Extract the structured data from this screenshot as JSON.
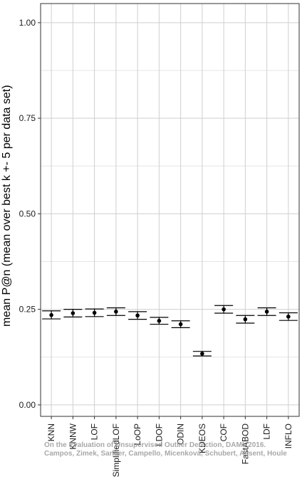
{
  "chart_data": {
    "type": "scatter",
    "subtype": "point-with-error-bars",
    "ylabel": "mean P@n (mean over best k +- 5 per data set)",
    "ylim": [
      -0.03,
      1.05
    ],
    "yticks": [
      0.0,
      0.25,
      0.5,
      0.75,
      1.0
    ],
    "ytick_labels": [
      "0.00",
      "0.25",
      "0.50",
      "0.75",
      "1.00"
    ],
    "grid": true,
    "categories": [
      "KNN",
      "KNNW",
      "LOF",
      "SimplifiedLOF",
      "LoOP",
      "LDOF",
      "ODIN",
      "KDEOS",
      "COF",
      "FastABOD",
      "LDF",
      "INFLO"
    ],
    "series": [
      {
        "mean": [
          0.235,
          0.24,
          0.241,
          0.244,
          0.234,
          0.22,
          0.211,
          0.134,
          0.25,
          0.224,
          0.244,
          0.231
        ],
        "lower": [
          0.225,
          0.23,
          0.231,
          0.234,
          0.224,
          0.211,
          0.202,
          0.128,
          0.24,
          0.214,
          0.234,
          0.221
        ],
        "upper": [
          0.246,
          0.25,
          0.251,
          0.254,
          0.244,
          0.229,
          0.22,
          0.14,
          0.26,
          0.234,
          0.254,
          0.241
        ]
      }
    ]
  },
  "watermark": {
    "line1": "On the Evaluation of Unsupervised Outlier Detection, DAMI, 2016.",
    "line2": "Campos, Zimek, Sander, Campello, Micenková, Schubert, Assent, Houle"
  }
}
